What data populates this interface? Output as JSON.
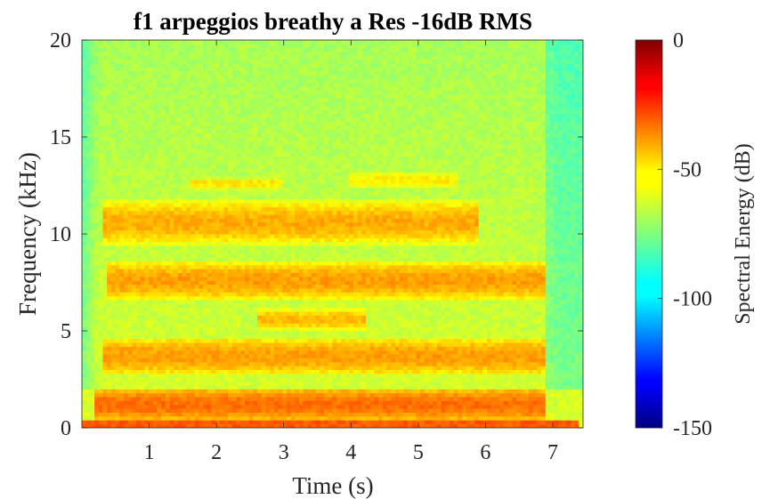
{
  "chart_data": {
    "type": "heatmap",
    "title": "f1 arpeggios breathy a Res -16dB RMS",
    "xlabel": "Time (s)",
    "ylabel": "Frequency (kHz)",
    "xlim": [
      0,
      7.45
    ],
    "ylim": [
      0,
      20
    ],
    "x_ticks": [
      1,
      2,
      3,
      4,
      5,
      6,
      7
    ],
    "y_ticks": [
      0,
      5,
      10,
      15,
      20
    ],
    "colorbar": {
      "label": "Spectral Energy (dB)",
      "range": [
        -150,
        0
      ],
      "ticks": [
        0,
        -50,
        -100,
        -150
      ],
      "colormap": "jet"
    },
    "grid": false,
    "description": "Spectrogram; energy concentrated in harmonic bands",
    "bands": [
      {
        "freq_khz": 0.2,
        "width_khz": 0.4,
        "level_db": -30,
        "t_start": 0.0,
        "t_end": 7.4
      },
      {
        "freq_khz": 1.2,
        "width_khz": 1.2,
        "level_db": -35,
        "t_start": 0.2,
        "t_end": 6.9
      },
      {
        "freq_khz": 3.7,
        "width_khz": 1.4,
        "level_db": -42,
        "t_start": 0.3,
        "t_end": 6.9
      },
      {
        "freq_khz": 5.6,
        "width_khz": 0.8,
        "level_db": -46,
        "t_start": 2.6,
        "t_end": 4.2
      },
      {
        "freq_khz": 7.6,
        "width_khz": 1.4,
        "level_db": -42,
        "t_start": 0.4,
        "t_end": 6.9
      },
      {
        "freq_khz": 10.6,
        "width_khz": 1.6,
        "level_db": -44,
        "t_start": 0.3,
        "t_end": 5.9
      },
      {
        "freq_khz": 12.6,
        "width_khz": 0.5,
        "level_db": -52,
        "t_start": 1.6,
        "t_end": 3.0
      },
      {
        "freq_khz": 12.8,
        "width_khz": 0.8,
        "level_db": -54,
        "t_start": 4.0,
        "t_end": 5.6
      }
    ],
    "background_level_db": -62,
    "edge_level_db": -75
  }
}
